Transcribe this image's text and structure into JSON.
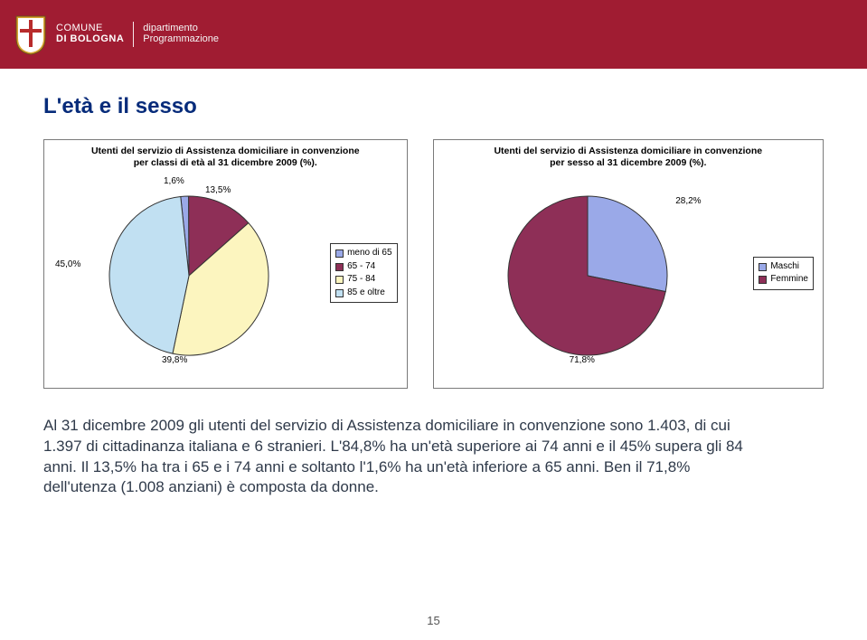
{
  "header": {
    "org_line1": "COMUNE",
    "org_line2": "DI BOLOGNA",
    "dept_line1": "dipartimento",
    "dept_line2": "Programmazione",
    "band_color": "#a01c32"
  },
  "title": "L'età e il sesso",
  "chart_age": {
    "type": "pie",
    "title_line1": "Utenti del servizio di Assistenza domiciliare in convenzione",
    "title_line2": "per classi di età al 31 dicembre 2009 (%).",
    "slices": [
      {
        "label": "meno di 65",
        "value": 1.6,
        "value_fmt": "1,6%",
        "color": "#9aa9e8"
      },
      {
        "label": "65 - 74",
        "value": 13.5,
        "value_fmt": "13,5%",
        "color": "#8e2f57"
      },
      {
        "label": "75 - 84",
        "value": 39.8,
        "value_fmt": "39,8%",
        "color": "#fcf5bf"
      },
      {
        "label": "85 e oltre",
        "value": 45.0,
        "value_fmt": "45,0%",
        "color": "#c1e0f2"
      }
    ],
    "border_color": "#333333",
    "background_color": "#ffffff",
    "label_fontsize": 10
  },
  "chart_sex": {
    "type": "pie",
    "title_line1": "Utenti del servizio di Assistenza domiciliare in convenzione",
    "title_line2": "per sesso al 31 dicembre 2009 (%).",
    "slices": [
      {
        "label": "Maschi",
        "value": 28.2,
        "value_fmt": "28,2%",
        "color": "#9aa9e8"
      },
      {
        "label": "Femmine",
        "value": 71.8,
        "value_fmt": "71,8%",
        "color": "#8e2f57"
      }
    ],
    "border_color": "#333333",
    "background_color": "#ffffff",
    "label_fontsize": 10
  },
  "body_text": "Al 31 dicembre 2009 gli utenti del servizio di Assistenza domiciliare in convenzione sono 1.403, di cui 1.397 di cittadinanza italiana e 6 stranieri. L'84,8% ha un'età superiore ai 74 anni e il 45% supera gli 84 anni. Il 13,5% ha tra i 65 e i 74 anni e soltanto l'1,6% ha un'età inferiore a 65 anni. Ben il 71,8% dell'utenza (1.008 anziani) è composta da donne.",
  "page_number": "15",
  "crest_colors": {
    "shield": "#d9a431",
    "shadow": "#6d5215",
    "cross": "#b82b2b"
  }
}
